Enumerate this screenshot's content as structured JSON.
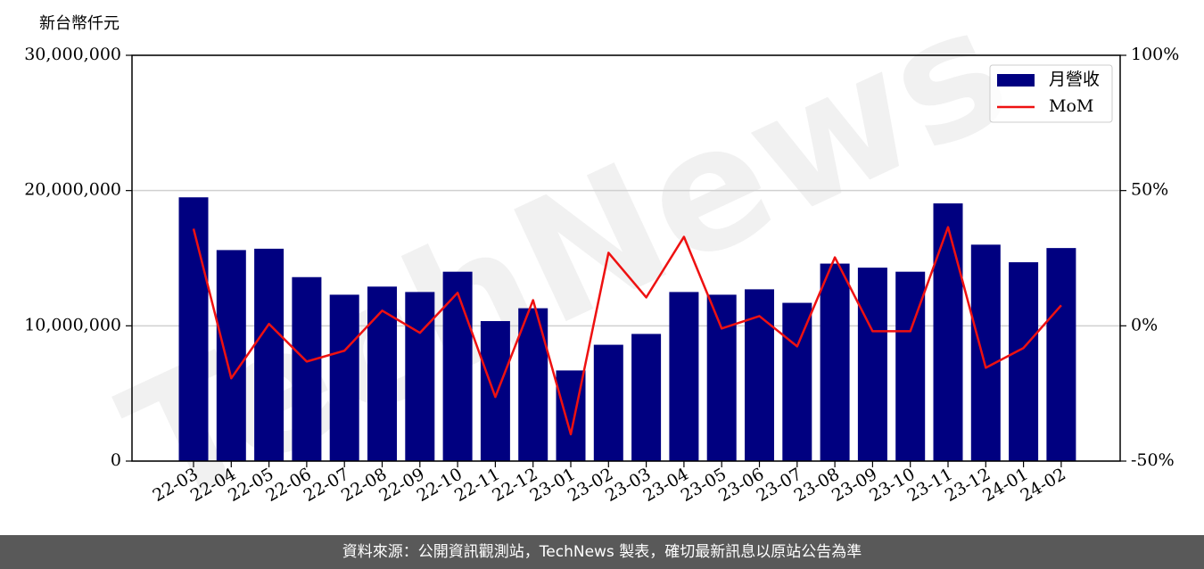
{
  "chart_data": {
    "type": "bar-line",
    "y_label": "新台幣仟元",
    "watermark": "TechNews",
    "footer": "資料來源：公開資訊觀測站，TechNews 製表，確切最新訊息以原站公告為準",
    "categories": [
      "22-03",
      "22-04",
      "22-05",
      "22-06",
      "22-07",
      "22-08",
      "22-09",
      "22-10",
      "22-11",
      "22-12",
      "23-01",
      "23-02",
      "23-03",
      "23-04",
      "23-05",
      "23-06",
      "23-07",
      "23-08",
      "23-09",
      "23-10",
      "23-11",
      "23-12",
      "24-01",
      "24-02"
    ],
    "series": [
      {
        "name": "月營收",
        "type": "bar",
        "color": "#000080",
        "values": [
          19500000,
          15600000,
          15700000,
          13600000,
          12300000,
          12900000,
          12500000,
          14000000,
          10350000,
          11300000,
          6700000,
          8600000,
          9400000,
          12500000,
          12300000,
          12700000,
          11700000,
          14600000,
          14300000,
          14000000,
          19050000,
          16000000,
          14700000,
          15750000
        ]
      },
      {
        "name": "MoM",
        "type": "line",
        "axis": "y2",
        "color": "#ee1111",
        "values": [
          35.9,
          -19.4,
          0.7,
          -13.2,
          -9.2,
          5.6,
          -2.6,
          12.2,
          -26.3,
          9.5,
          -40.1,
          27.0,
          10.5,
          32.9,
          -1.0,
          3.6,
          -7.6,
          25.3,
          -2.0,
          -2.0,
          36.5,
          -15.5,
          -8.2,
          7.6
        ]
      }
    ],
    "ylim": [
      0,
      30000000
    ],
    "yticks": [
      0,
      {
        "value": 10000000,
        "label": "10,000,000"
      },
      {
        "value": 20000000,
        "label": "20,000,000"
      },
      {
        "value": 30000000,
        "label": "30,000,000"
      }
    ],
    "y2lim": [
      -50,
      100
    ],
    "y2ticks": [
      {
        "value": -50,
        "label": "-50%"
      },
      {
        "value": 0,
        "label": "0%"
      },
      {
        "value": 50,
        "label": "50%"
      },
      {
        "value": 100,
        "label": "100%"
      }
    ],
    "grid": true,
    "legend": "upper right"
  }
}
